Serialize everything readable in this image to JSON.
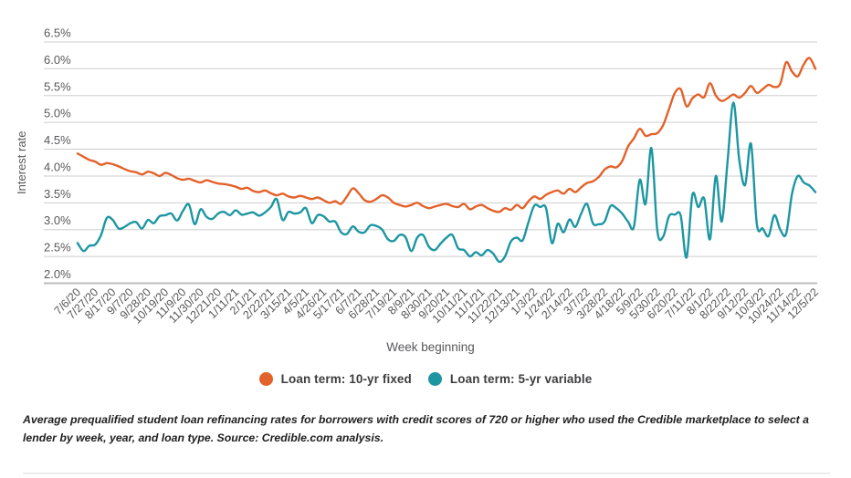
{
  "page": {
    "footnote_lines": [
      "Average prequalified student loan refinancing rates for borrowers with credit scores of 720 or higher who used the Credible marketplace to select a lender by week, year,",
      "and loan type. Source: Credible.com analysis."
    ]
  },
  "chart_data": {
    "type": "line",
    "title": "",
    "xlabel": "Week beginning",
    "ylabel": "Interest rate",
    "x_unit": "week",
    "points_per_tick": 3,
    "grid": true,
    "legend_position": "bottom",
    "ylim": [
      2.0,
      6.5
    ],
    "y_ticks": [
      {
        "label": "6.5%",
        "value": 6.5
      },
      {
        "label": "6.0%",
        "value": 6.0
      },
      {
        "label": "5.5%",
        "value": 5.5
      },
      {
        "label": "5.0%",
        "value": 5.0
      },
      {
        "label": "4.5%",
        "value": 4.5
      },
      {
        "label": "4.0%",
        "value": 4.0
      },
      {
        "label": "3.5%",
        "value": 3.5
      },
      {
        "label": "3.0%",
        "value": 3.0
      },
      {
        "label": "2.5%",
        "value": 2.5
      },
      {
        "label": "2.0%",
        "value": 2.0
      }
    ],
    "x_tick_labels": [
      "7/6/20",
      "7/27/20",
      "8/17/20",
      "9/7/20",
      "9/28/20",
      "10/19/20",
      "11/9/20",
      "11/30/20",
      "12/21/20",
      "1/11/21",
      "2/1/21",
      "2/22/21",
      "3/15/21",
      "4/5/21",
      "4/26/21",
      "5/17/21",
      "6/7/21",
      "6/28/21",
      "7/19/21",
      "8/9/21",
      "8/30/21",
      "9/20/21",
      "10/11/21",
      "11/1/21",
      "11/22/21",
      "12/13/21",
      "1/3/22",
      "1/24/22",
      "2/14/22",
      "3/7/22",
      "3/28/22",
      "4/18/22",
      "5/9/22",
      "5/30/22",
      "6/20/22",
      "7/11/22",
      "8/1/22",
      "8/22/22",
      "9/12/22",
      "10/3/22",
      "10/24/22",
      "11/14/22",
      "12/5/22"
    ],
    "series": [
      {
        "name": "Loan term: 10-yr fixed",
        "color": "#E3612A",
        "values": [
          4.42,
          4.36,
          4.3,
          4.27,
          4.21,
          4.24,
          4.22,
          4.18,
          4.13,
          4.09,
          4.07,
          4.03,
          4.08,
          4.05,
          4.0,
          4.06,
          4.02,
          3.96,
          3.93,
          3.95,
          3.91,
          3.88,
          3.92,
          3.89,
          3.86,
          3.85,
          3.83,
          3.8,
          3.76,
          3.78,
          3.72,
          3.7,
          3.73,
          3.68,
          3.64,
          3.67,
          3.62,
          3.6,
          3.63,
          3.6,
          3.57,
          3.6,
          3.55,
          3.5,
          3.53,
          3.48,
          3.62,
          3.77,
          3.68,
          3.55,
          3.52,
          3.57,
          3.64,
          3.6,
          3.5,
          3.46,
          3.43,
          3.46,
          3.5,
          3.44,
          3.4,
          3.43,
          3.46,
          3.48,
          3.44,
          3.42,
          3.48,
          3.38,
          3.43,
          3.46,
          3.4,
          3.35,
          3.33,
          3.4,
          3.37,
          3.46,
          3.4,
          3.53,
          3.62,
          3.57,
          3.65,
          3.7,
          3.73,
          3.67,
          3.76,
          3.7,
          3.79,
          3.87,
          3.9,
          3.98,
          4.12,
          4.18,
          4.16,
          4.28,
          4.55,
          4.7,
          4.88,
          4.75,
          4.78,
          4.8,
          4.95,
          5.25,
          5.55,
          5.62,
          5.3,
          5.45,
          5.52,
          5.47,
          5.73,
          5.5,
          5.4,
          5.45,
          5.52,
          5.46,
          5.55,
          5.68,
          5.55,
          5.62,
          5.7,
          5.66,
          5.72,
          6.12,
          5.95,
          5.86,
          6.08,
          6.2,
          6.0
        ]
      },
      {
        "name": "Loan term: 5-yr variable",
        "color": "#1D96A2",
        "values": [
          2.75,
          2.6,
          2.7,
          2.72,
          2.9,
          3.22,
          3.18,
          3.02,
          3.05,
          3.12,
          3.14,
          3.02,
          3.18,
          3.12,
          3.25,
          3.27,
          3.3,
          3.17,
          3.35,
          3.47,
          3.1,
          3.38,
          3.24,
          3.2,
          3.3,
          3.33,
          3.27,
          3.36,
          3.28,
          3.3,
          3.32,
          3.26,
          3.32,
          3.42,
          3.57,
          3.18,
          3.33,
          3.3,
          3.32,
          3.4,
          3.12,
          3.27,
          3.25,
          3.15,
          3.15,
          2.95,
          2.92,
          3.06,
          2.96,
          2.95,
          3.08,
          3.07,
          3.0,
          2.82,
          2.79,
          2.9,
          2.86,
          2.6,
          2.85,
          2.9,
          2.68,
          2.62,
          2.74,
          2.85,
          2.9,
          2.65,
          2.62,
          2.5,
          2.58,
          2.52,
          2.62,
          2.55,
          2.4,
          2.5,
          2.78,
          2.85,
          2.8,
          3.14,
          3.45,
          3.42,
          3.4,
          2.75,
          3.11,
          2.95,
          3.19,
          3.05,
          3.3,
          3.48,
          3.12,
          3.1,
          3.15,
          3.44,
          3.4,
          3.3,
          3.15,
          3.05,
          3.93,
          3.48,
          4.52,
          2.98,
          2.87,
          3.25,
          3.28,
          3.26,
          2.48,
          3.65,
          3.42,
          3.58,
          2.82,
          4.0,
          3.15,
          4.27,
          5.37,
          4.3,
          3.83,
          4.6,
          3.1,
          3.02,
          2.88,
          3.27,
          3.0,
          2.92,
          3.66,
          4.0,
          3.88,
          3.82,
          3.7
        ]
      }
    ],
    "style": {
      "gridline_color": "#cecece",
      "axis_line_color": "#bdbdbd",
      "tick_text_color": "#58585b"
    }
  }
}
